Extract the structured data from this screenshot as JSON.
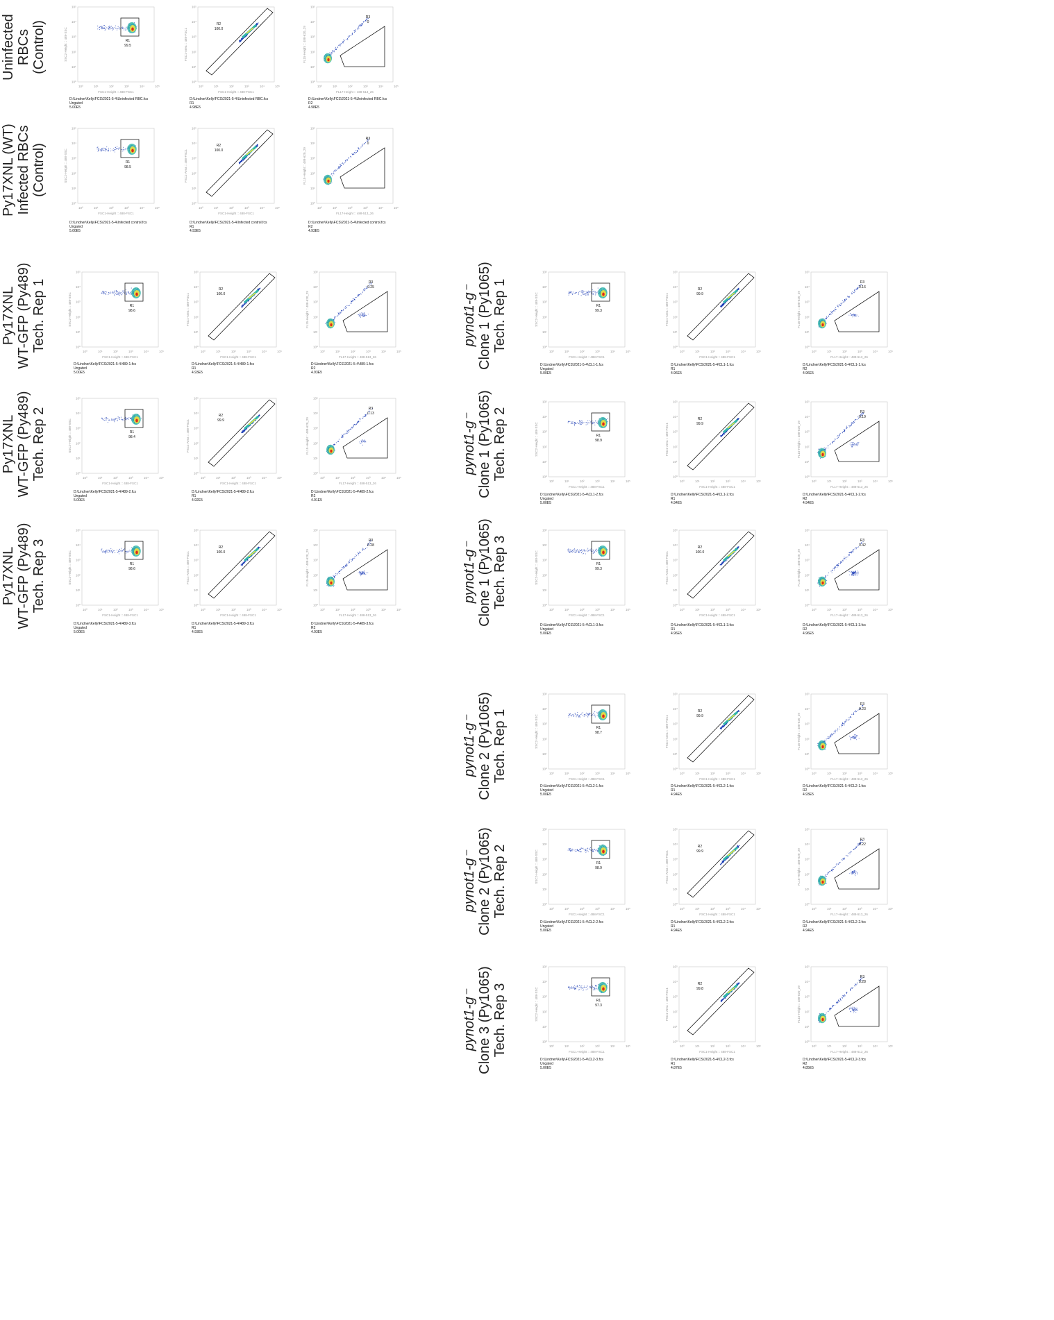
{
  "colors": {
    "axis": "#9a9a9a",
    "gate": "#1a1a1a",
    "density_low": "#1f3fb6",
    "density_mid": "#2fb7a8",
    "density_hi": "#f0e040",
    "density_peak": "#e02a1a"
  },
  "rows": [
    {
      "id": "uninfected",
      "label_lines": [
        "Uninfected",
        "RBCs",
        "(Control)"
      ],
      "italic_first_line": false,
      "panels": [
        {
          "gate": "R1",
          "value": "99.5",
          "axis_x": "FSC1-Height :: 488-FSC1",
          "axis_y": "SSC2-Height :: 488-SSC",
          "caption": [
            "D:\\Lindner\\Kelly\\FCS\\2021-5-4\\Uninfected RBC.fcs",
            "Ungated",
            "5.00E5"
          ]
        },
        {
          "gate": "R2",
          "value": "100.0",
          "axis_x": "FSC1-Height :: 488-FSC1",
          "axis_y": "FSC1-Area :: 488-FSC1",
          "caption": [
            "D:\\Lindner\\Kelly\\FCS\\2021-5-4\\Uninfected RBC.fcs",
            "R1",
            "4.98E5"
          ]
        },
        {
          "gate": "R3",
          "value": "0",
          "axis_x": "FL17-Height :: 488-513_26",
          "axis_y": "FL15-Height :: 488-620_29",
          "caption": [
            "D:\\Lindner\\Kelly\\FCS\\2021-5-4\\Uninfected RBC.fcs",
            "R2",
            "4.98E5"
          ]
        }
      ]
    },
    {
      "id": "infected-control",
      "label_lines": [
        "Py17XNL (WT)",
        "Infected RBCs",
        "(Control)"
      ],
      "italic_first_line": false,
      "panels": [
        {
          "gate": "R1",
          "value": "98.5",
          "axis_x": "FSC1-Height :: 488-FSC1",
          "axis_y": "SSC2-Height :: 488-SSC",
          "caption": [
            "D:\\Lindner\\Kelly\\FCS\\2021-5-4\\Infected control.fcs",
            "Ungated",
            "5.00E5"
          ]
        },
        {
          "gate": "R2",
          "value": "100.0",
          "axis_x": "FSC1-Height :: 488-FSC1",
          "axis_y": "FSC1-Area :: 488-FSC1",
          "caption": [
            "D:\\Lindner\\Kelly\\FCS\\2021-5-4\\Infected control.fcs",
            "R1",
            "4.93E5"
          ]
        },
        {
          "gate": "R3",
          "value": "0",
          "axis_x": "FL17-Height :: 488-513_26",
          "axis_y": "FL15-Height :: 488-620_29",
          "caption": [
            "D:\\Lindner\\Kelly\\FCS\\2021-5-4\\Infected control.fcs",
            "R2",
            "4.93E5"
          ]
        }
      ]
    },
    {
      "id": "wt-rep1",
      "label_lines": [
        "Py17XNL",
        "WT-GFP (Py489)",
        "Tech. Rep 1"
      ],
      "italic_first_line": false,
      "panels": [
        {
          "gate": "R1",
          "value": "98.6",
          "axis_x": "FSC1-Height :: 488-FSC1",
          "axis_y": "SSC2-Height :: 488-SSC",
          "caption": [
            "D:\\Lindner\\Kelly\\FCS\\2021-5-4\\489-1.fcs",
            "Ungated",
            "5.00E5"
          ]
        },
        {
          "gate": "R2",
          "value": "100.0",
          "axis_x": "FSC1-Height :: 488-FSC1",
          "axis_y": "FSC1-Area :: 488-FSC1",
          "caption": [
            "D:\\Lindner\\Kelly\\FCS\\2021-5-4\\489-1.fcs",
            "R1",
            "4.93E5"
          ]
        },
        {
          "gate": "R3",
          "value": "0.25",
          "axis_x": "FL17-Height :: 488-513_26",
          "axis_y": "FL15-Height :: 488-620_29",
          "caption": [
            "D:\\Lindner\\Kelly\\FCS\\2021-5-4\\489-1.fcs",
            "R2",
            "4.93E5"
          ]
        }
      ]
    },
    {
      "id": "wt-rep2",
      "label_lines": [
        "Py17XNL",
        "WT-GFP (Py489)",
        "Tech. Rep 2"
      ],
      "italic_first_line": false,
      "panels": [
        {
          "gate": "R1",
          "value": "98.4",
          "axis_x": "FSC1-Height :: 488-FSC1",
          "axis_y": "SSC2-Height :: 488-SSC",
          "caption": [
            "D:\\Lindner\\Kelly\\FCS\\2021-5-4\\489-2.fcs",
            "Ungated",
            "5.00E5"
          ]
        },
        {
          "gate": "R2",
          "value": "99.9",
          "axis_x": "FSC1-Height :: 488-FSC1",
          "axis_y": "FSC1-Area :: 488-FSC1",
          "caption": [
            "D:\\Lindner\\Kelly\\FCS\\2021-5-4\\489-2.fcs",
            "R1",
            "4.92E5"
          ]
        },
        {
          "gate": "R3",
          "value": "0.13",
          "axis_x": "FL17-Height :: 488-513_26",
          "axis_y": "FL15-Height :: 488-620_29",
          "caption": [
            "D:\\Lindner\\Kelly\\FCS\\2021-5-4\\489-2.fcs",
            "R2",
            "4.91E5"
          ]
        }
      ]
    },
    {
      "id": "wt-rep3",
      "label_lines": [
        "Py17XNL",
        "WT-GFP (Py489)",
        "Tech. Rep 3"
      ],
      "italic_first_line": false,
      "panels": [
        {
          "gate": "R1",
          "value": "98.6",
          "axis_x": "FSC1-Height :: 488-FSC1",
          "axis_y": "SSC2-Height :: 488-SSC",
          "caption": [
            "D:\\Lindner\\Kelly\\FCS\\2021-5-4\\489-3.fcs",
            "Ungated",
            "5.00E5"
          ]
        },
        {
          "gate": "R2",
          "value": "100.0",
          "axis_x": "FSC1-Height :: 488-FSC1",
          "axis_y": "FSC1-Area :: 488-FSC1",
          "caption": [
            "D:\\Lindner\\Kelly\\FCS\\2021-5-4\\489-3.fcs",
            "R1",
            "4.93E5"
          ]
        },
        {
          "gate": "R3",
          "value": "0.28",
          "axis_x": "FL17-Height :: 488-513_26",
          "axis_y": "FL15-Height :: 488-620_29",
          "caption": [
            "D:\\Lindner\\Kelly\\FCS\\2021-5-4\\489-3.fcs",
            "R2",
            "4.93E5"
          ]
        }
      ]
    },
    {
      "id": "c1-rep1",
      "label_lines": [
        "pynot1-g⁻",
        "Clone 1 (Py1065)",
        "Tech. Rep 1"
      ],
      "italic_first_line": true,
      "panels": [
        {
          "gate": "R1",
          "value": "99.3",
          "axis_x": "FSC1-Height :: 488-FSC1",
          "axis_y": "SSC2-Height :: 488-SSC",
          "caption": [
            "D:\\Lindner\\Kelly\\FCS\\2021-5-4\\CL1-1.fcs",
            "Ungated",
            "5.00E5"
          ]
        },
        {
          "gate": "R2",
          "value": "99.9",
          "axis_x": "FSC1-Height :: 488-FSC1",
          "axis_y": "FSC1-Area :: 488-FSC1",
          "caption": [
            "D:\\Lindner\\Kelly\\FCS\\2021-5-4\\CL1-1.fcs",
            "R1",
            "4.96E5"
          ]
        },
        {
          "gate": "R3",
          "value": "0.16",
          "axis_x": "FL17-Height :: 488-513_26",
          "axis_y": "FL15-Height :: 488-620_29",
          "caption": [
            "D:\\Lindner\\Kelly\\FCS\\2021-5-4\\CL1-1.fcs",
            "R2",
            "4.96E5"
          ]
        }
      ]
    },
    {
      "id": "c1-rep2",
      "label_lines": [
        "pynot1-g⁻",
        "Clone 1 (Py1065)",
        "Tech. Rep 2"
      ],
      "italic_first_line": true,
      "panels": [
        {
          "gate": "R1",
          "value": "98.9",
          "axis_x": "FSC1-Height :: 488-FSC1",
          "axis_y": "SSC2-Height :: 488-SSC",
          "caption": [
            "D:\\Lindner\\Kelly\\FCS\\2021-5-4\\CL1-2.fcs",
            "Ungated",
            "5.00E5"
          ]
        },
        {
          "gate": "R2",
          "value": "99.9",
          "axis_x": "FSC1-Height :: 488-FSC1",
          "axis_y": "FSC1-Area :: 488-FSC1",
          "caption": [
            "D:\\Lindner\\Kelly\\FCS\\2021-5-4\\CL1-2.fcs",
            "R1",
            "4.94E5"
          ]
        },
        {
          "gate": "R3",
          "value": "0.19",
          "axis_x": "FL17-Height :: 488-513_26",
          "axis_y": "FL15-Height :: 488-620_29",
          "caption": [
            "D:\\Lindner\\Kelly\\FCS\\2021-5-4\\CL1-2.fcs",
            "R2",
            "4.94E5"
          ]
        }
      ]
    },
    {
      "id": "c1-rep3",
      "label_lines": [
        "pynot1-g⁻",
        "Clone 1 (Py1065)",
        "Tech. Rep 3"
      ],
      "italic_first_line": true,
      "panels": [
        {
          "gate": "R1",
          "value": "99.3",
          "axis_x": "FSC1-Height :: 488-FSC1",
          "axis_y": "SSC2-Height :: 488-SSC",
          "caption": [
            "D:\\Lindner\\Kelly\\FCS\\2021-5-4\\CL1-3.fcs",
            "Ungated",
            "5.00E5"
          ]
        },
        {
          "gate": "R2",
          "value": "100.0",
          "axis_x": "FSC1-Height :: 488-FSC1",
          "axis_y": "FSC1-Area :: 488-FSC1",
          "caption": [
            "D:\\Lindner\\Kelly\\FCS\\2021-5-4\\CL1-3.fcs",
            "R1",
            "4.96E5"
          ]
        },
        {
          "gate": "R3",
          "value": "0.42",
          "axis_x": "FL17-Height :: 488-513_26",
          "axis_y": "FL15-Height :: 488-620_29",
          "caption": [
            "D:\\Lindner\\Kelly\\FCS\\2021-5-4\\CL1-3.fcs",
            "R2",
            "4.96E5"
          ]
        }
      ]
    },
    {
      "id": "c2-rep1",
      "label_lines": [
        "pynot1-g⁻",
        "Clone 2 (Py1065)",
        "Tech. Rep 1"
      ],
      "italic_first_line": true,
      "panels": [
        {
          "gate": "R1",
          "value": "98.7",
          "axis_x": "FSC1-Height :: 488-FSC1",
          "axis_y": "SSC2-Height :: 488-SSC",
          "caption": [
            "D:\\Lindner\\Kelly\\FCS\\2021-5-4\\CL2-1.fcs",
            "Ungated",
            "5.00E5"
          ]
        },
        {
          "gate": "R2",
          "value": "99.9",
          "axis_x": "FSC1-Height :: 488-FSC1",
          "axis_y": "FSC1-Area :: 488-FSC1",
          "caption": [
            "D:\\Lindner\\Kelly\\FCS\\2021-5-4\\CL2-1.fcs",
            "R1",
            "4.94E5"
          ]
        },
        {
          "gate": "R3",
          "value": "0.23",
          "axis_x": "FL17-Height :: 488-513_26",
          "axis_y": "FL15-Height :: 488-620_29",
          "caption": [
            "D:\\Lindner\\Kelly\\FCS\\2021-5-4\\CL2-1.fcs",
            "R2",
            "4.93E5"
          ]
        }
      ]
    },
    {
      "id": "c2-rep2",
      "label_lines": [
        "pynot1-g⁻",
        "Clone 2 (Py1065)",
        "Tech. Rep 2"
      ],
      "italic_first_line": true,
      "panels": [
        {
          "gate": "R1",
          "value": "98.9",
          "axis_x": "FSC1-Height :: 488-FSC1",
          "axis_y": "SSC2-Height :: 488-SSC",
          "caption": [
            "D:\\Lindner\\Kelly\\FCS\\2021-5-4\\CL2-2.fcs",
            "Ungated",
            "5.00E5"
          ]
        },
        {
          "gate": "R2",
          "value": "99.9",
          "axis_x": "FSC1-Height :: 488-FSC1",
          "axis_y": "FSC1-Area :: 488-FSC1",
          "caption": [
            "D:\\Lindner\\Kelly\\FCS\\2021-5-4\\CL2-2.fcs",
            "R1",
            "4.94E5"
          ]
        },
        {
          "gate": "R3",
          "value": "0.22",
          "axis_x": "FL17-Height :: 488-513_26",
          "axis_y": "FL15-Height :: 488-620_29",
          "caption": [
            "D:\\Lindner\\Kelly\\FCS\\2021-5-4\\CL2-2.fcs",
            "R2",
            "4.94E5"
          ]
        }
      ]
    },
    {
      "id": "c3-rep3",
      "label_lines": [
        "pynot1-g⁻",
        "Clone 3 (Py1065)",
        "Tech. Rep 3"
      ],
      "italic_first_line": true,
      "panels": [
        {
          "gate": "R1",
          "value": "97.3",
          "axis_x": "FSC1-Height :: 488-FSC1",
          "axis_y": "SSC2-Height :: 488-SSC",
          "caption": [
            "D:\\Lindner\\Kelly\\FCS\\2021-5-4\\CL2-3.fcs",
            "Ungated",
            "5.00E5"
          ]
        },
        {
          "gate": "R2",
          "value": "99.8",
          "axis_x": "FSC1-Height :: 488-FSC1",
          "axis_y": "FSC1-Area :: 488-FSC1",
          "caption": [
            "D:\\Lindner\\Kelly\\FCS\\2021-5-4\\CL2-3.fcs",
            "R1",
            "4.87E5"
          ]
        },
        {
          "gate": "R3",
          "value": "0.28",
          "axis_x": "FL17-Height :: 488-513_26",
          "axis_y": "FL15-Height :: 488-620_29",
          "caption": [
            "D:\\Lindner\\Kelly\\FCS\\2021-5-4\\CL2-3.fcs",
            "R2",
            "4.85E5"
          ]
        }
      ]
    }
  ],
  "chart_data": {
    "type": "scatter",
    "axis_scale": "log",
    "tick_labels": [
      "10⁰",
      "10¹",
      "10²",
      "10³",
      "10⁴",
      "10⁵"
    ],
    "gate_percentages": [
      {
        "sample": "Uninfected RBCs (Control)",
        "R1": 99.5,
        "R2": 100.0,
        "R3": 0
      },
      {
        "sample": "Py17XNL (WT) Infected RBCs (Control)",
        "R1": 98.5,
        "R2": 100.0,
        "R3": 0
      },
      {
        "sample": "Py17XNL WT-GFP (Py489) Tech. Rep 1",
        "R1": 98.6,
        "R2": 100.0,
        "R3": 0.25
      },
      {
        "sample": "Py17XNL WT-GFP (Py489) Tech. Rep 2",
        "R1": 98.4,
        "R2": 99.9,
        "R3": 0.13
      },
      {
        "sample": "Py17XNL WT-GFP (Py489) Tech. Rep 3",
        "R1": 98.6,
        "R2": 100.0,
        "R3": 0.28
      },
      {
        "sample": "pynot1-g⁻ Clone 1 (Py1065) Tech. Rep 1",
        "R1": 99.3,
        "R2": 99.9,
        "R3": 0.16
      },
      {
        "sample": "pynot1-g⁻ Clone 1 (Py1065) Tech. Rep 2",
        "R1": 98.9,
        "R2": 99.9,
        "R3": 0.19
      },
      {
        "sample": "pynot1-g⁻ Clone 1 (Py1065) Tech. Rep 3",
        "R1": 99.3,
        "R2": 100.0,
        "R3": 0.42
      },
      {
        "sample": "pynot1-g⁻ Clone 2 (Py1065) Tech. Rep 1",
        "R1": 98.7,
        "R2": 99.9,
        "R3": 0.23
      },
      {
        "sample": "pynot1-g⁻ Clone 2 (Py1065) Tech. Rep 2",
        "R1": 98.9,
        "R2": 99.9,
        "R3": 0.22
      },
      {
        "sample": "pynot1-g⁻ Clone 3 (Py1065) Tech. Rep 3",
        "R1": 97.3,
        "R2": 99.8,
        "R3": 0.28
      }
    ]
  }
}
